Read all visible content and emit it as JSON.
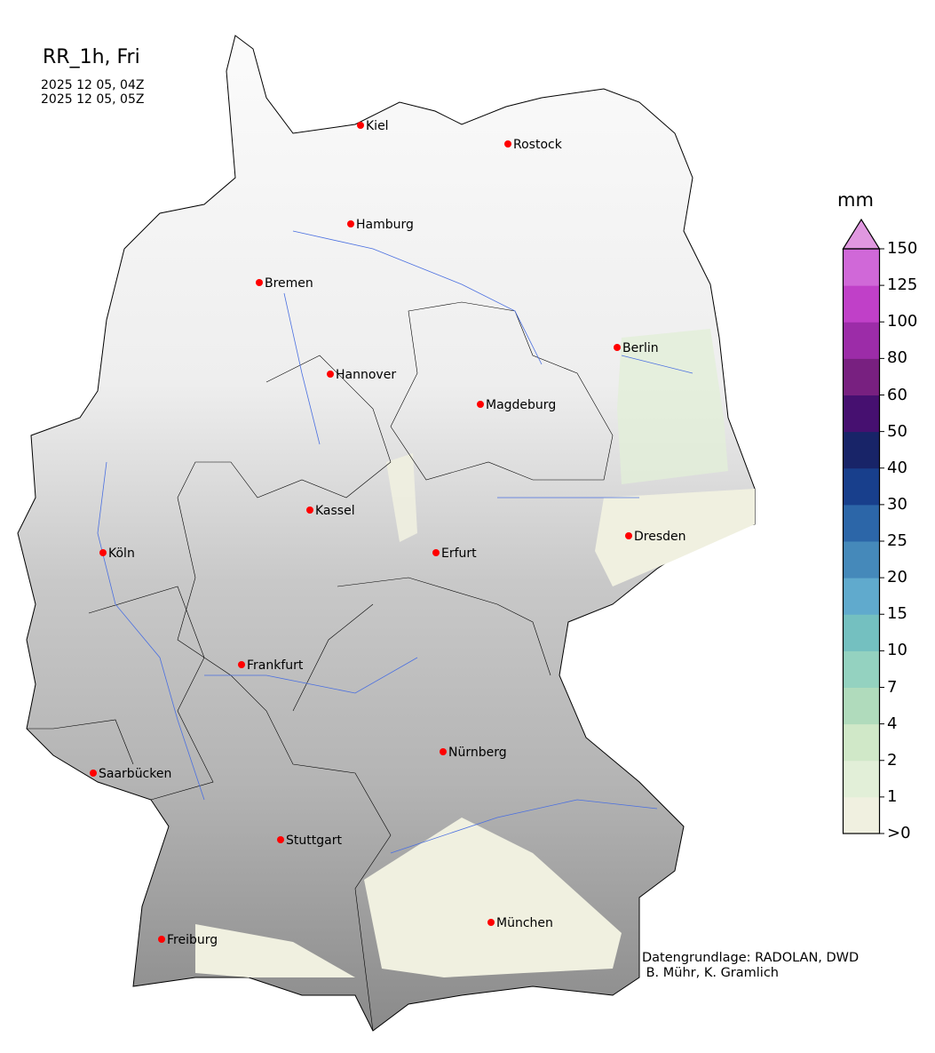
{
  "header": {
    "title": "RR_1h, Fri",
    "time_start": "2025 12 05, 04Z",
    "time_end": "2025 12 05, 05Z"
  },
  "map": {
    "region": "Germany",
    "city_marker_color": "#ff0000",
    "cities": [
      "Kiel",
      "Rostock",
      "Hamburg",
      "Bremen",
      "Berlin",
      "Hannover",
      "Magdeburg",
      "Kassel",
      "Dresden",
      "Köln",
      "Erfurt",
      "Frankfurt",
      "Nürnberg",
      "Saarbücken",
      "Stuttgart",
      "München",
      "Freiburg"
    ]
  },
  "colorbar": {
    "unit": "mm",
    "ticks": [
      ">0",
      "1",
      "2",
      "4",
      "7",
      "10",
      "15",
      "20",
      "25",
      "30",
      "40",
      "50",
      "60",
      "80",
      "100",
      "125",
      "150"
    ],
    "colors": [
      "#f0f0e0",
      "#e2efd8",
      "#d0e8c8",
      "#b0dbbc",
      "#94d2c0",
      "#74c0c0",
      "#60aacd",
      "#4589ba",
      "#2c66a8",
      "#183f8c",
      "#182468",
      "#461070",
      "#782080",
      "#9c2ca8",
      "#c040c8",
      "#d068d8"
    ],
    "extend_color": "#e098e0"
  },
  "credits": {
    "line1": "Datengrundlage: RADOLAN, DWD",
    "line2": " B. Mühr, K. Gramlich"
  }
}
